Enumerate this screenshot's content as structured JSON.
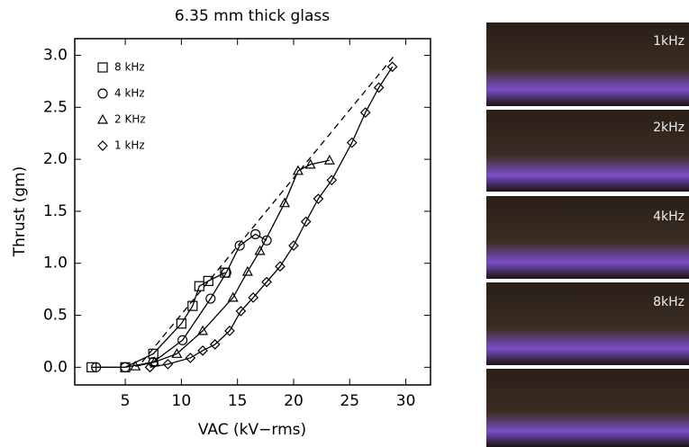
{
  "chart_data": {
    "type": "line",
    "title": "6.35 mm thick glass",
    "x_label": "VAC (kV−rms)",
    "y_label": "Thrust (gm)",
    "xlim": [
      0.5,
      32.2
    ],
    "ylim": [
      -0.17,
      3.16
    ],
    "xticks": [
      5,
      10,
      15,
      20,
      25,
      30
    ],
    "yticks": [
      {
        "value": 0,
        "label": "0.0"
      },
      0.5,
      {
        "value": 1,
        "label": "1.0"
      },
      1.5,
      {
        "value": 2,
        "label": "2.0"
      },
      2.5,
      {
        "value": 3,
        "label": "3.0"
      }
    ],
    "series": [
      {
        "name": "8 kHz",
        "marker": "square",
        "color": "#000",
        "x": [
          2,
          5,
          7.5,
          10,
          11,
          11.6,
          12.4,
          13.9
        ],
        "values": [
          0,
          0,
          0.13,
          0.42,
          0.59,
          0.78,
          0.83,
          0.91
        ]
      },
      {
        "name": "4 kHz",
        "marker": "circle",
        "color": "#000",
        "x": [
          2.4,
          5,
          7.5,
          10.1,
          12.6,
          14,
          15.2,
          16.6,
          17.6
        ],
        "values": [
          0,
          0,
          0.05,
          0.26,
          0.66,
          0.91,
          1.17,
          1.28,
          1.22
        ]
      },
      {
        "name": "2 KHz",
        "marker": "triangle",
        "color": "#000",
        "x": [
          5.9,
          7.6,
          9.6,
          11.9,
          14.6,
          15.9,
          17,
          19.2,
          20.4,
          21.5,
          23.2
        ],
        "values": [
          0.01,
          0.05,
          0.13,
          0.35,
          0.67,
          0.92,
          1.12,
          1.58,
          1.89,
          1.95,
          1.99
        ]
      },
      {
        "name": "1 kHz",
        "marker": "diamond",
        "color": "#000",
        "x": [
          7.2,
          8.8,
          10.8,
          11.9,
          13,
          14.3,
          15.3,
          16.4,
          17.6,
          18.8,
          20,
          21.1,
          22.2,
          23.4,
          25.2,
          26.4,
          27.6,
          28.8
        ],
        "values": [
          0,
          0.03,
          0.09,
          0.16,
          0.22,
          0.35,
          0.54,
          0.67,
          0.82,
          0.97,
          1.17,
          1.4,
          1.62,
          1.8,
          2.16,
          2.45,
          2.69,
          2.89
        ]
      },
      {
        "style": "dashed",
        "color": "#000",
        "x": [
          6.5,
          29
        ],
        "values": [
          0.05,
          3.0
        ]
      }
    ]
  },
  "photo_labels": [
    "1kHz",
    "2kHz",
    "4kHz",
    "8kHz"
  ]
}
